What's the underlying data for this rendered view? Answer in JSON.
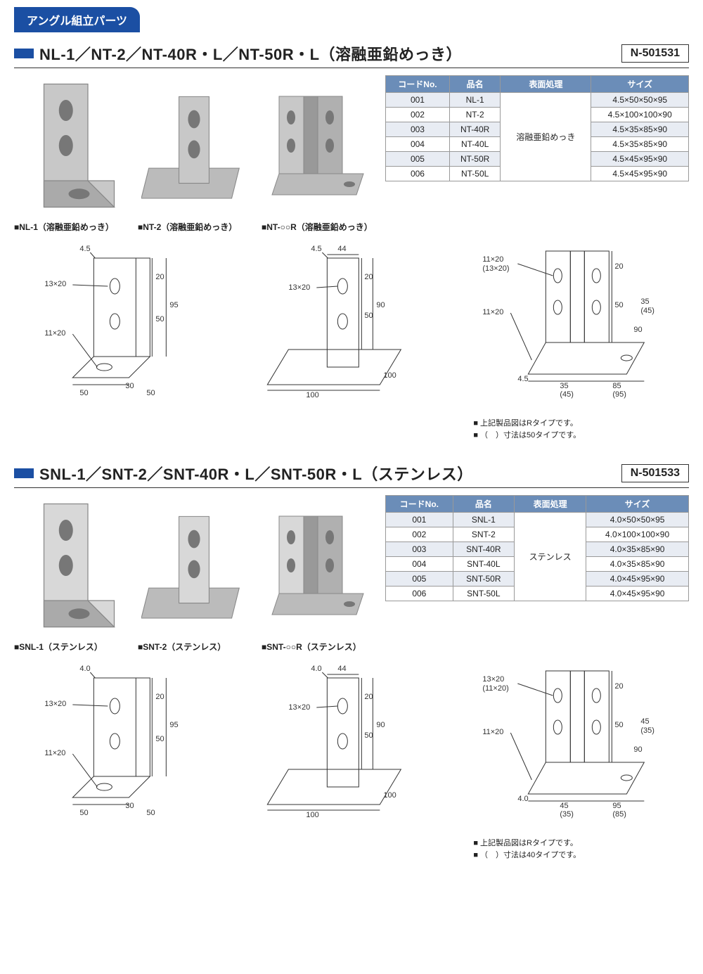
{
  "category": "アングル組立パーツ",
  "sections": [
    {
      "title": "NL-1／NT-2／NT-40R・L／NT-50R・L（溶融亜鉛めっき）",
      "code": "N-501531",
      "photos": [
        {
          "caption": "NL-1（溶融亜鉛めっき）"
        },
        {
          "caption": "NT-2（溶融亜鉛めっき）"
        },
        {
          "caption": "NT-○○R（溶融亜鉛めっき）"
        }
      ],
      "table": {
        "headers": [
          "コードNo.",
          "品名",
          "表面処理",
          "サイズ"
        ],
        "surface": "溶融亜鉛めっき",
        "rows": [
          [
            "001",
            "NL-1",
            "4.5×50×50×95"
          ],
          [
            "002",
            "NT-2",
            "4.5×100×100×90"
          ],
          [
            "003",
            "NT-40R",
            "4.5×35×85×90"
          ],
          [
            "004",
            "NT-40L",
            "4.5×35×85×90"
          ],
          [
            "005",
            "NT-50R",
            "4.5×45×95×90"
          ],
          [
            "006",
            "NT-50L",
            "4.5×45×95×90"
          ]
        ]
      },
      "diagrams": {
        "d1": {
          "thick": "4.5",
          "hole1": "13×20",
          "hole2": "11×20",
          "h1": "20",
          "h2": "50",
          "h3": "95",
          "w1": "50",
          "w2": "30",
          "w3": "50"
        },
        "d2": {
          "thick": "4.5",
          "w_top": "44",
          "hole": "13×20",
          "h1": "20",
          "h2": "50",
          "h3": "90",
          "base1": "100",
          "base2": "100"
        },
        "d3": {
          "hole1": "11×20\n(13×20)",
          "hole2": "11×20",
          "h1": "20",
          "h2": "50",
          "h3": "90",
          "off1": "35\n(45)",
          "thick": "4.5",
          "w1": "35\n(45)",
          "w2": "85\n(95)"
        },
        "notes": [
          "上記製品図はRタイプです。",
          "（　）寸法は50タイプです。"
        ]
      }
    },
    {
      "title": "SNL-1／SNT-2／SNT-40R・L／SNT-50R・L（ステンレス）",
      "code": "N-501533",
      "photos": [
        {
          "caption": "SNL-1（ステンレス）"
        },
        {
          "caption": "SNT-2（ステンレス）"
        },
        {
          "caption": "SNT-○○R（ステンレス）"
        }
      ],
      "table": {
        "headers": [
          "コードNo.",
          "品名",
          "表面処理",
          "サイズ"
        ],
        "surface": "ステンレス",
        "rows": [
          [
            "001",
            "SNL-1",
            "4.0×50×50×95"
          ],
          [
            "002",
            "SNT-2",
            "4.0×100×100×90"
          ],
          [
            "003",
            "SNT-40R",
            "4.0×35×85×90"
          ],
          [
            "004",
            "SNT-40L",
            "4.0×35×85×90"
          ],
          [
            "005",
            "SNT-50R",
            "4.0×45×95×90"
          ],
          [
            "006",
            "SNT-50L",
            "4.0×45×95×90"
          ]
        ]
      },
      "diagrams": {
        "d1": {
          "thick": "4.0",
          "hole1": "13×20",
          "hole2": "11×20",
          "h1": "20",
          "h2": "50",
          "h3": "95",
          "w1": "50",
          "w2": "30",
          "w3": "50"
        },
        "d2": {
          "thick": "4.0",
          "w_top": "44",
          "hole": "13×20",
          "h1": "20",
          "h2": "50",
          "h3": "90",
          "base1": "100",
          "base2": "100"
        },
        "d3": {
          "hole1": "13×20\n(11×20)",
          "hole2": "11×20",
          "h1": "20",
          "h2": "50",
          "h3": "90",
          "off1": "45\n(35)",
          "thick": "4.0",
          "w1": "45\n(35)",
          "w2": "95\n(85)"
        },
        "notes": [
          "上記製品図はRタイプです。",
          "（　）寸法は40タイプです。"
        ]
      }
    }
  ],
  "colors": {
    "brand": "#1b4fa3",
    "th_bg": "#6b8db8",
    "row_alt": "#e8ecf3",
    "metal_galv": "#c8c8c8",
    "metal_ss": "#d8d8d8"
  }
}
